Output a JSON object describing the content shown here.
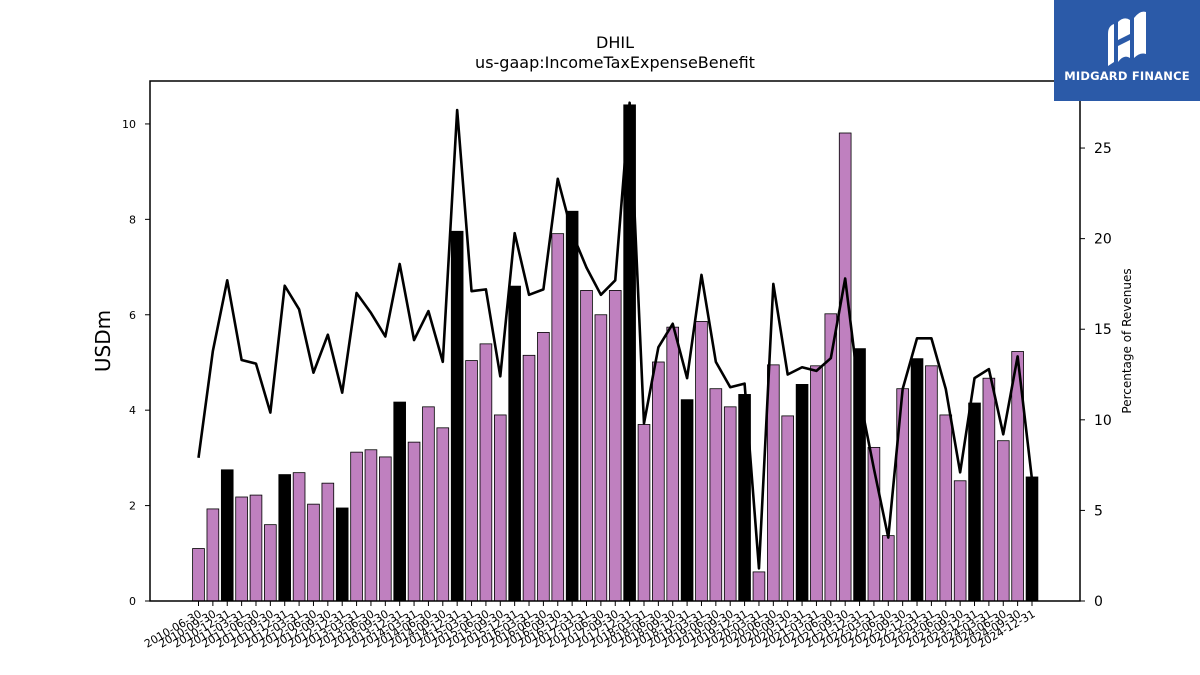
{
  "brand": {
    "name": "MIDGARD FINANCE",
    "logo_icon": "midgard-logo-icon",
    "background": "#2b5aa8"
  },
  "chart_data": {
    "type": "bar",
    "title": "DHIL",
    "subtitle": "us-gaap:IncomeTaxExpenseBenefit",
    "ylabel": "USDm",
    "y2label": "Percentage of Revenues",
    "ylim": [
      0,
      10.9
    ],
    "y2lim": [
      0,
      28.7
    ],
    "yticks": [
      0,
      2,
      4,
      6,
      8,
      10
    ],
    "y2ticks": [
      0,
      5,
      10,
      15,
      20,
      25
    ],
    "colors": {
      "bar_quarter": "#bf80bf",
      "bar_year_end": "#000000",
      "line": "#000000"
    },
    "x": [
      "2010-06-30",
      "2010-09-30",
      "2010-12-31",
      "2011-03-31",
      "2011-06-30",
      "2011-09-30",
      "2011-12-31",
      "2012-03-31",
      "2012-06-30",
      "2012-09-30",
      "2012-12-31",
      "2013-03-31",
      "2013-06-30",
      "2013-09-30",
      "2013-12-31",
      "2014-03-31",
      "2014-06-30",
      "2014-09-30",
      "2014-12-31",
      "2015-03-31",
      "2015-06-30",
      "2015-09-30",
      "2015-12-31",
      "2016-03-31",
      "2016-06-30",
      "2016-09-30",
      "2016-12-31",
      "2017-03-31",
      "2017-06-30",
      "2017-09-30",
      "2017-12-31",
      "2018-03-31",
      "2018-06-30",
      "2018-09-30",
      "2018-12-31",
      "2019-03-31",
      "2019-06-30",
      "2019-09-30",
      "2019-12-31",
      "2020-03-31",
      "2020-06-30",
      "2020-09-30",
      "2020-12-31",
      "2021-03-31",
      "2021-06-30",
      "2021-09-30",
      "2021-12-31",
      "2022-03-31",
      "2022-06-30",
      "2022-09-30",
      "2022-12-31",
      "2023-03-31",
      "2023-06-30",
      "2023-09-30",
      "2023-12-31",
      "2024-03-31",
      "2024-06-30",
      "2024-09-30",
      "2024-12-31"
    ],
    "series": [
      {
        "name": "",
        "kind": "bar",
        "axis": "left",
        "values": [
          1.1,
          1.93,
          2.75,
          2.18,
          2.22,
          1.6,
          2.65,
          2.69,
          2.03,
          2.47,
          1.95,
          3.12,
          3.17,
          3.02,
          4.17,
          3.33,
          4.07,
          3.63,
          7.75,
          5.04,
          5.39,
          3.9,
          6.6,
          5.15,
          5.63,
          7.7,
          8.17,
          6.51,
          6.0,
          6.51,
          10.4,
          3.7,
          5.01,
          5.74,
          4.22,
          5.86,
          4.45,
          4.07,
          4.33,
          0.61,
          4.95,
          3.88,
          4.54,
          4.93,
          6.02,
          9.81,
          5.29,
          3.22,
          1.37,
          4.45,
          5.08,
          4.93,
          3.9,
          2.52,
          4.15,
          4.67,
          3.36,
          5.23,
          2.6
        ],
        "year_end": [
          false,
          false,
          true,
          false,
          false,
          false,
          true,
          false,
          false,
          false,
          true,
          false,
          false,
          false,
          true,
          false,
          false,
          false,
          true,
          false,
          false,
          false,
          true,
          false,
          false,
          false,
          true,
          false,
          false,
          false,
          true,
          false,
          false,
          false,
          true,
          false,
          false,
          false,
          true,
          false,
          false,
          false,
          true,
          false,
          false,
          false,
          true,
          false,
          false,
          false,
          true,
          false,
          false,
          false,
          true,
          false,
          false,
          false,
          true
        ]
      },
      {
        "name": "",
        "kind": "line",
        "axis": "right",
        "values": [
          7.9,
          13.8,
          17.7,
          13.3,
          13.1,
          10.4,
          17.4,
          16.1,
          12.6,
          14.7,
          11.5,
          17.0,
          15.9,
          14.6,
          18.6,
          14.4,
          16.0,
          13.2,
          27.1,
          17.1,
          17.2,
          12.4,
          20.3,
          16.9,
          17.2,
          23.3,
          20.3,
          18.4,
          16.9,
          17.7,
          27.5,
          9.8,
          14.0,
          15.3,
          12.3,
          18.0,
          13.2,
          11.8,
          12.0,
          1.8,
          17.5,
          12.5,
          12.9,
          12.7,
          13.4,
          17.8,
          11.3,
          7.3,
          3.5,
          11.7,
          14.5,
          14.5,
          11.7,
          7.1,
          12.3,
          12.8,
          9.2,
          13.5,
          6.7
        ]
      }
    ]
  }
}
